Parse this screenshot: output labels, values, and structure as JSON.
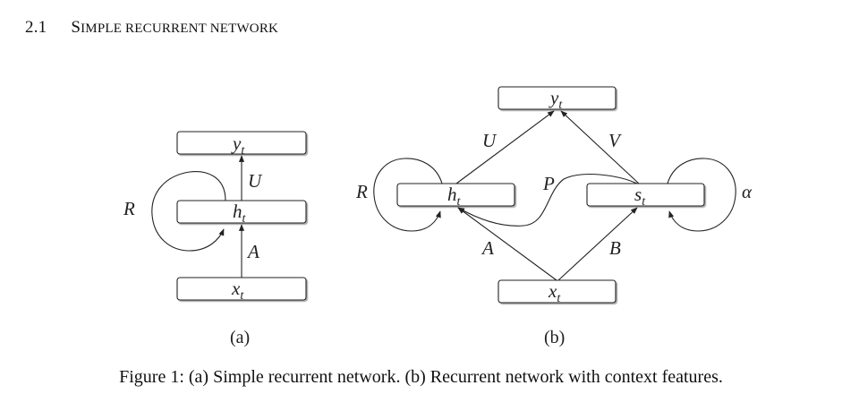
{
  "section": {
    "number": "2.1",
    "title_first": "S",
    "title_rest": "imple recurrent network"
  },
  "figure": {
    "panel_a": {
      "label": "(a)",
      "nodes": {
        "output": {
          "var": "y",
          "sub": "t"
        },
        "hidden": {
          "var": "h",
          "sub": "t"
        },
        "input": {
          "var": "x",
          "sub": "t"
        }
      },
      "edges": {
        "recurrent": "R",
        "hidden_to_output": "U",
        "input_to_hidden": "A"
      }
    },
    "panel_b": {
      "label": "(b)",
      "nodes": {
        "output": {
          "var": "y",
          "sub": "t"
        },
        "hidden": {
          "var": "h",
          "sub": "t"
        },
        "context": {
          "var": "s",
          "sub": "t"
        },
        "input": {
          "var": "x",
          "sub": "t"
        }
      },
      "edges": {
        "hidden_recurrent": "R",
        "context_recurrent": "α",
        "hidden_to_output": "U",
        "context_to_output": "V",
        "context_to_hidden": "P",
        "input_to_hidden": "A",
        "input_to_context": "B"
      }
    },
    "caption": "Figure 1: (a) Simple recurrent network. (b) Recurrent network with context features."
  }
}
